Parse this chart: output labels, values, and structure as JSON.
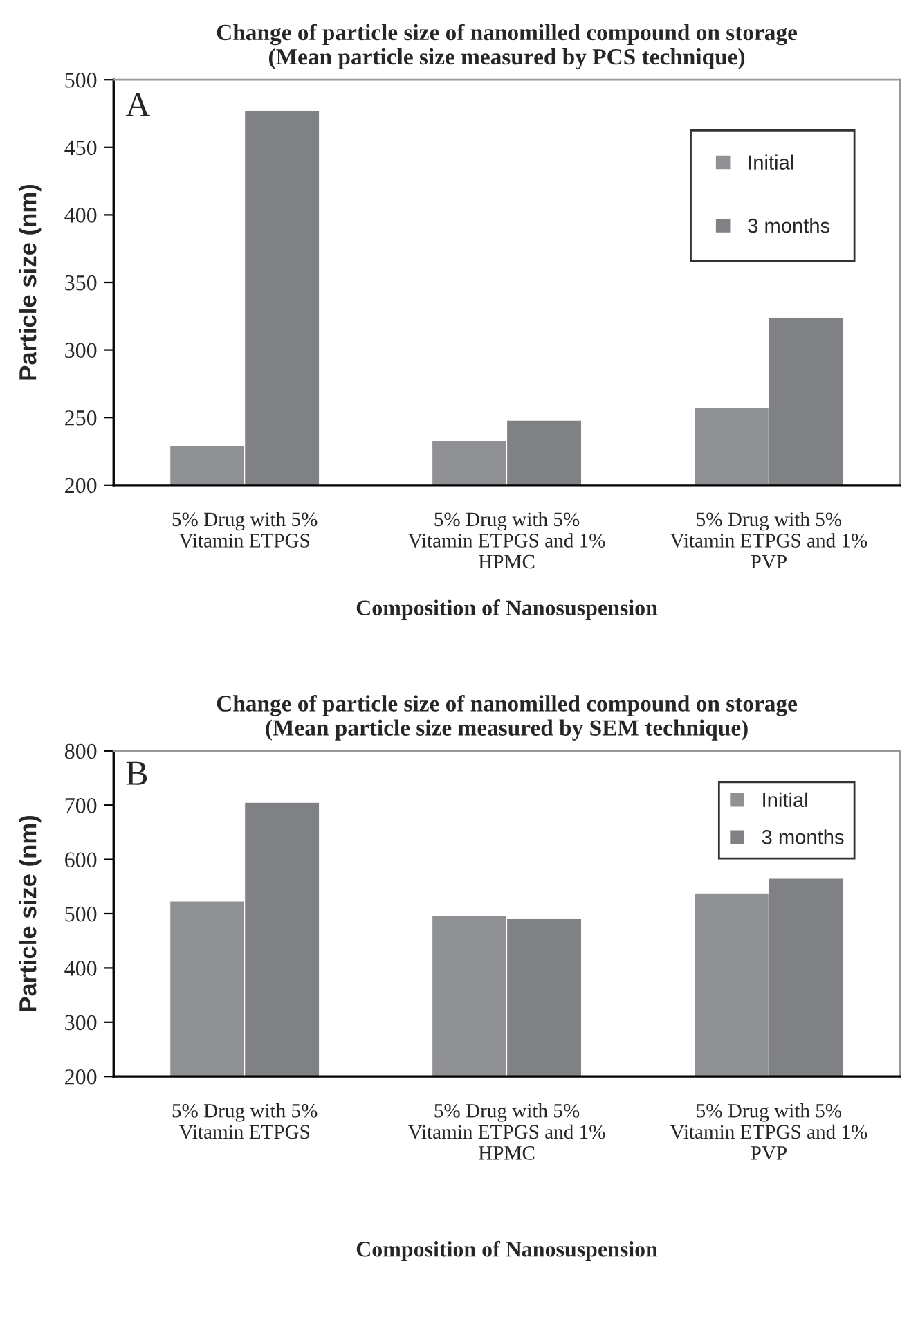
{
  "chart_data": [
    {
      "type": "bar",
      "title": "Change of particle size of nanomilled compound on storage\n(Mean particle size measured by PCS technique)",
      "xlabel": "Composition of Nanosuspension",
      "ylabel": "Particle size (nm)",
      "categories": [
        "5% Drug with 5%\nVitamin ETPGS",
        "5% Drug with 5%\nVitamin ETPGS and 1%\nHPMC",
        "5% Drug with 5%\nVitamin ETPGS and 1%\nPVP"
      ],
      "series": [
        {
          "name": "Initial",
          "color": "#909194",
          "values": [
            229,
            233,
            257
          ]
        },
        {
          "name": "3 months",
          "color": "#808185",
          "values": [
            477,
            248,
            324
          ]
        }
      ],
      "ylim": [
        200,
        500
      ],
      "yticks": [
        200,
        250,
        300,
        350,
        400,
        450,
        500
      ],
      "legend": "top right",
      "annotations": [
        "A"
      ]
    },
    {
      "type": "bar",
      "title": "Change of particle size of nanomilled compound on storage\n(Mean particle size measured by SEM technique)",
      "xlabel": "Composition of Nanosuspension",
      "ylabel": "Particle size (nm)",
      "categories": [
        "5% Drug with 5%\nVitamin ETPGS",
        "5% Drug with 5%\nVitamin ETPGS and 1%\nHPMC",
        "5% Drug with 5%\nVitamin ETPGS and 1%\nPVP"
      ],
      "series": [
        {
          "name": "Initial",
          "color": "#909194",
          "values": [
            523,
            496,
            538
          ]
        },
        {
          "name": "3 months",
          "color": "#808185",
          "values": [
            705,
            491,
            565
          ]
        }
      ],
      "ylim": [
        200,
        800
      ],
      "yticks": [
        200,
        300,
        400,
        500,
        600,
        700,
        800
      ],
      "legend": "top right",
      "annotations": [
        "B"
      ]
    }
  ]
}
